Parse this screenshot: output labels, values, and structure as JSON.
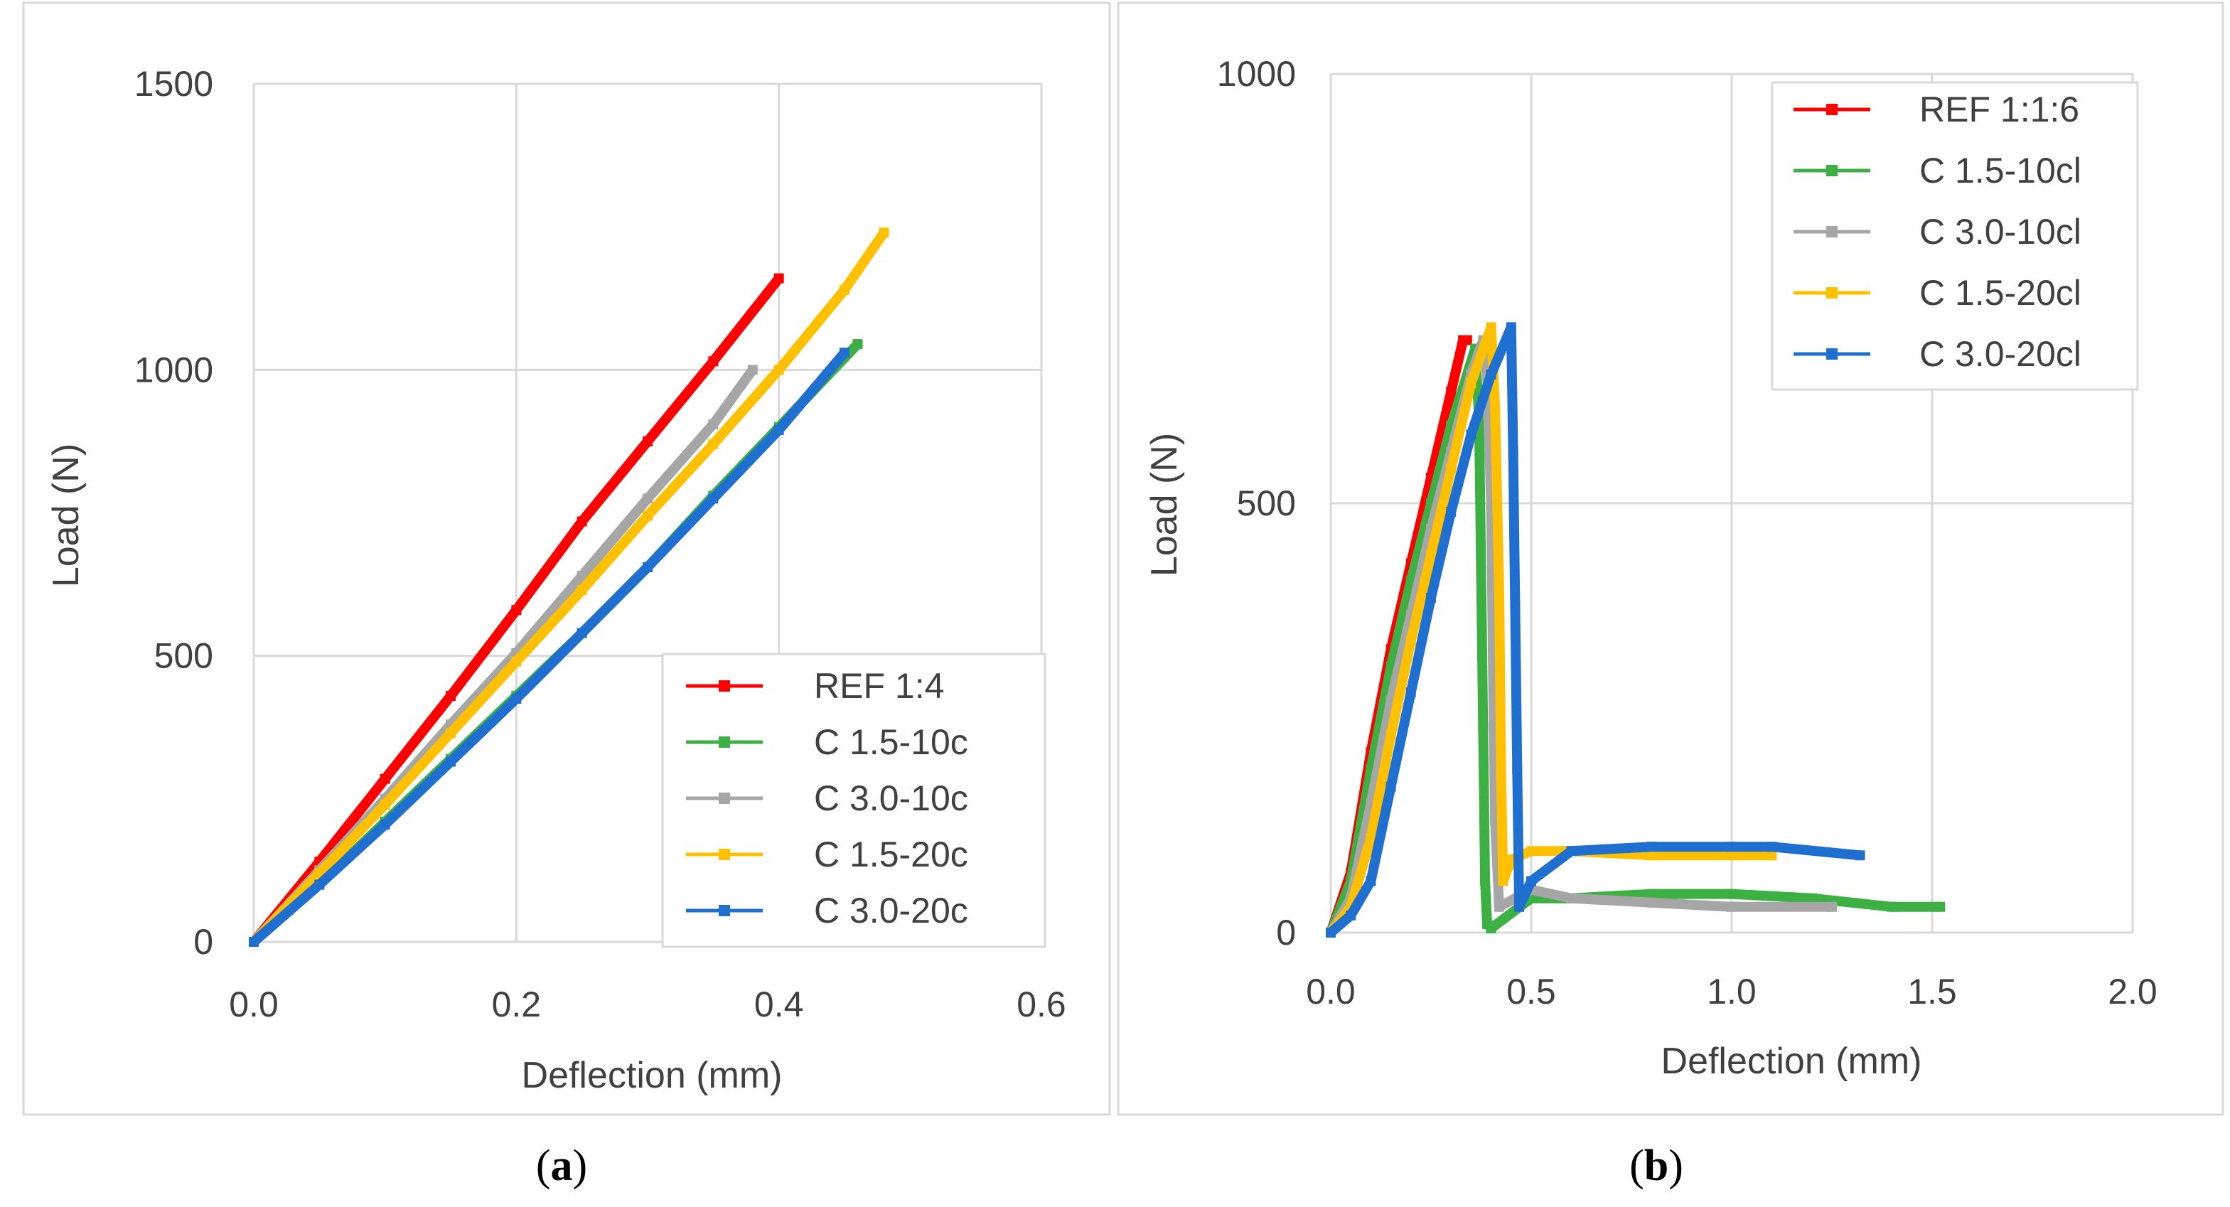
{
  "colors": {
    "red": "#ff0000",
    "green": "#3cb043",
    "grey": "#a6a6a6",
    "yellow": "#ffc000",
    "blue": "#1f6fd1",
    "grid": "#d9d9d9",
    "text": "#404040"
  },
  "captions": {
    "a": "a",
    "b": "b"
  },
  "chart_data": [
    {
      "panel": "a",
      "type": "line",
      "title": "",
      "xlabel": "Deflection (mm)",
      "ylabel": "Load (N)",
      "xlim": [
        0,
        0.6
      ],
      "ylim": [
        0,
        1500
      ],
      "xticks": [
        "0.0",
        "0.2",
        "0.4",
        "0.6"
      ],
      "yticks": [
        "0",
        "500",
        "1000",
        "1500"
      ],
      "grid": true,
      "legend_position": "bottom-right",
      "series": [
        {
          "name": "REF 1:4",
          "color": "#ff0000",
          "x": [
            0,
            0.05,
            0.1,
            0.15,
            0.2,
            0.25,
            0.3,
            0.35,
            0.4
          ],
          "y": [
            0,
            140,
            285,
            430,
            580,
            735,
            875,
            1015,
            1160
          ]
        },
        {
          "name": "C 1.5-10c",
          "color": "#3cb043",
          "x": [
            0,
            0.05,
            0.1,
            0.15,
            0.2,
            0.25,
            0.3,
            0.35,
            0.4,
            0.46
          ],
          "y": [
            0,
            100,
            210,
            320,
            430,
            540,
            655,
            780,
            900,
            1045
          ]
        },
        {
          "name": "C 3.0-10c",
          "color": "#a6a6a6",
          "x": [
            0,
            0.05,
            0.1,
            0.15,
            0.2,
            0.25,
            0.3,
            0.35,
            0.38
          ],
          "y": [
            0,
            125,
            250,
            380,
            505,
            640,
            775,
            905,
            1000
          ]
        },
        {
          "name": "C 1.5-20c",
          "color": "#ffc000",
          "x": [
            0,
            0.05,
            0.1,
            0.15,
            0.2,
            0.25,
            0.3,
            0.35,
            0.4,
            0.45,
            0.48
          ],
          "y": [
            0,
            120,
            240,
            365,
            490,
            615,
            745,
            870,
            1000,
            1140,
            1240
          ]
        },
        {
          "name": "C 3.0-20c",
          "color": "#1f6fd1",
          "x": [
            0,
            0.05,
            0.1,
            0.15,
            0.2,
            0.25,
            0.3,
            0.35,
            0.4,
            0.45
          ],
          "y": [
            0,
            100,
            205,
            315,
            425,
            540,
            655,
            775,
            895,
            1030
          ]
        }
      ]
    },
    {
      "panel": "b",
      "type": "line",
      "title": "",
      "xlabel": "Deflection (mm)",
      "ylabel": "Load (N)",
      "xlim": [
        0,
        2.0
      ],
      "ylim": [
        0,
        1000
      ],
      "xticks": [
        "0.0",
        "0.5",
        "1.0",
        "1.5",
        "2.0"
      ],
      "yticks": [
        "0",
        "500",
        "1000"
      ],
      "grid": true,
      "legend_position": "top-right",
      "series": [
        {
          "name": "REF 1:1:6",
          "color": "#ff0000",
          "x": [
            0,
            0.05,
            0.1,
            0.15,
            0.2,
            0.25,
            0.3,
            0.33,
            0.34
          ],
          "y": [
            0,
            70,
            210,
            330,
            430,
            530,
            630,
            690,
            690
          ]
        },
        {
          "name": "C 1.5-10cl",
          "color": "#3cb043",
          "x": [
            0,
            0.05,
            0.1,
            0.15,
            0.2,
            0.25,
            0.3,
            0.36,
            0.37,
            0.375,
            0.38,
            0.385,
            0.39,
            0.4,
            0.5,
            0.6,
            0.8,
            1.0,
            1.2,
            1.4,
            1.52
          ],
          "y": [
            0,
            60,
            190,
            310,
            410,
            500,
            590,
            680,
            600,
            420,
            240,
            60,
            10,
            5,
            40,
            40,
            45,
            45,
            40,
            30,
            30
          ]
        },
        {
          "name": "C 3.0-10cl",
          "color": "#a6a6a6",
          "x": [
            0,
            0.05,
            0.1,
            0.15,
            0.2,
            0.25,
            0.3,
            0.35,
            0.38,
            0.39,
            0.4,
            0.405,
            0.41,
            0.42,
            0.5,
            0.6,
            0.8,
            1.0,
            1.25
          ],
          "y": [
            0,
            40,
            150,
            270,
            370,
            470,
            560,
            650,
            690,
            650,
            500,
            300,
            130,
            30,
            50,
            40,
            35,
            30,
            30
          ]
        },
        {
          "name": "C 1.5-20cl",
          "color": "#ffc000",
          "x": [
            0,
            0.05,
            0.1,
            0.15,
            0.2,
            0.25,
            0.3,
            0.35,
            0.4,
            0.41,
            0.42,
            0.425,
            0.43,
            0.45,
            0.5,
            0.6,
            0.8,
            1.0,
            1.1
          ],
          "y": [
            0,
            30,
            110,
            230,
            340,
            440,
            540,
            640,
            705,
            610,
            400,
            180,
            60,
            85,
            95,
            95,
            90,
            90,
            90
          ]
        },
        {
          "name": "C 3.0-20cl",
          "color": "#1f6fd1",
          "x": [
            0,
            0.05,
            0.1,
            0.15,
            0.2,
            0.25,
            0.3,
            0.35,
            0.4,
            0.45,
            0.455,
            0.46,
            0.465,
            0.47,
            0.5,
            0.6,
            0.8,
            1.0,
            1.1,
            1.32
          ],
          "y": [
            0,
            20,
            60,
            170,
            280,
            390,
            490,
            580,
            650,
            705,
            560,
            380,
            190,
            30,
            60,
            95,
            100,
            100,
            100,
            90
          ]
        }
      ]
    }
  ]
}
